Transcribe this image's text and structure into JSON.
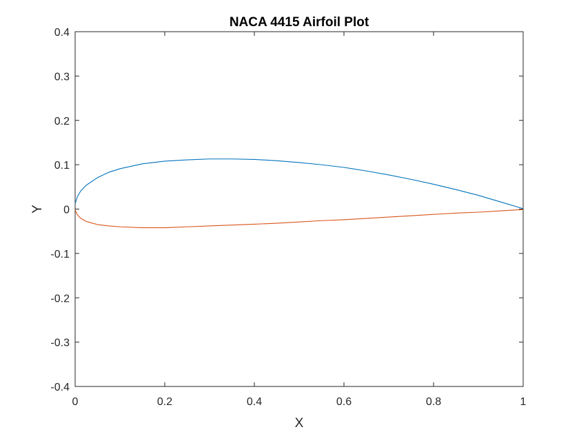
{
  "chart_data": {
    "type": "line",
    "title": "NACA 4415 Airfoil Plot",
    "xlabel": "X",
    "ylabel": "Y",
    "xlim": [
      0,
      1
    ],
    "ylim": [
      -0.4,
      0.4
    ],
    "xticks": [
      0,
      0.2,
      0.4,
      0.6,
      0.8,
      1
    ],
    "xtick_labels": [
      "0",
      "0.2",
      "0.4",
      "0.6",
      "0.8",
      "1"
    ],
    "yticks": [
      -0.4,
      -0.3,
      -0.2,
      -0.1,
      0,
      0.1,
      0.2,
      0.3,
      0.4
    ],
    "ytick_labels": [
      "-0.4",
      "-0.3",
      "-0.2",
      "-0.1",
      "0",
      "0.1",
      "0.2",
      "0.3",
      "0.4"
    ],
    "grid": false,
    "legend": "none",
    "series": [
      {
        "color": "#0072BD",
        "x": [
          0,
          0.005,
          0.0125,
          0.025,
          0.05,
          0.075,
          0.1,
          0.15,
          0.2,
          0.25,
          0.3,
          0.35,
          0.4,
          0.45,
          0.5,
          0.55,
          0.6,
          0.65,
          0.7,
          0.75,
          0.8,
          0.85,
          0.9,
          0.95,
          1
        ],
        "y": [
          0.012,
          0.028,
          0.041,
          0.054,
          0.071,
          0.083,
          0.091,
          0.102,
          0.108,
          0.111,
          0.113,
          0.113,
          0.112,
          0.109,
          0.105,
          0.1,
          0.094,
          0.086,
          0.077,
          0.067,
          0.056,
          0.044,
          0.031,
          0.016,
          0.001
        ]
      },
      {
        "color": "#D95319",
        "x": [
          0,
          0.005,
          0.0125,
          0.025,
          0.05,
          0.075,
          0.1,
          0.15,
          0.2,
          0.25,
          0.3,
          0.35,
          0.4,
          0.45,
          0.5,
          0.55,
          0.6,
          0.65,
          0.7,
          0.75,
          0.8,
          0.85,
          0.9,
          0.95,
          1
        ],
        "y": [
          -0.002,
          -0.013,
          -0.021,
          -0.028,
          -0.035,
          -0.038,
          -0.04,
          -0.042,
          -0.042,
          -0.04,
          -0.038,
          -0.036,
          -0.034,
          -0.032,
          -0.029,
          -0.026,
          -0.024,
          -0.021,
          -0.018,
          -0.015,
          -0.012,
          -0.009,
          -0.007,
          -0.004,
          -0.001
        ]
      }
    ]
  }
}
